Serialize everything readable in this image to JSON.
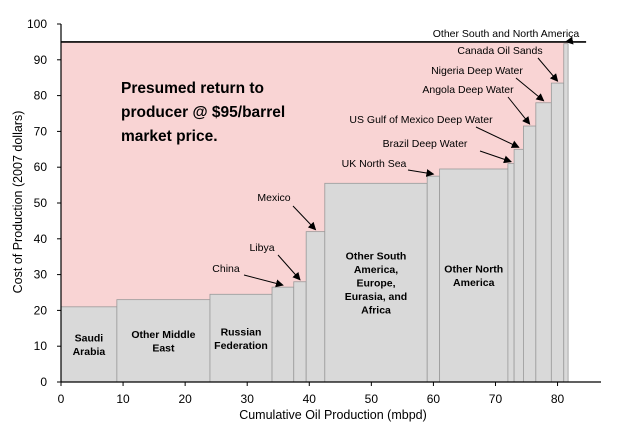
{
  "chart_data": {
    "type": "bar",
    "xlabel": "Cumulative Oil Production (mbpd)",
    "ylabel": "Cost of Production (2007 dollars)",
    "xlim": [
      0,
      87
    ],
    "ylim": [
      0,
      100
    ],
    "x_ticks": [
      "0",
      "10",
      "20",
      "30",
      "40",
      "50",
      "60",
      "70",
      "80"
    ],
    "y_ticks": [
      "0",
      "10",
      "20",
      "30",
      "40",
      "50",
      "60",
      "70",
      "80",
      "90",
      "100"
    ],
    "grid": false,
    "market_price": 95,
    "market_price_note": [
      "Presumed return to",
      "producer @ $95/barrel",
      "market price."
    ],
    "colors": {
      "bar": "#d9d9d9",
      "bar_edge": "#9a9a9a",
      "return_area": "#f9d4d4",
      "price_line": "#000000"
    },
    "bars": [
      {
        "name": "Saudi Arabia",
        "label_lines": [
          "Saudi",
          "Arabia"
        ],
        "x_start": 0,
        "x_end": 9,
        "cost": 21
      },
      {
        "name": "Other Middle East",
        "label_lines": [
          "Other Middle",
          "East"
        ],
        "x_start": 9,
        "x_end": 24,
        "cost": 23
      },
      {
        "name": "Russian Federation",
        "label_lines": [
          "Russian",
          "Federation"
        ],
        "x_start": 24,
        "x_end": 34,
        "cost": 24.5
      },
      {
        "name": "China",
        "annotation": "China",
        "x_start": 34,
        "x_end": 37.5,
        "cost": 26.5
      },
      {
        "name": "Libya",
        "annotation": "Libya",
        "x_start": 37.5,
        "x_end": 39.5,
        "cost": 28
      },
      {
        "name": "Mexico",
        "annotation": "Mexico",
        "x_start": 39.5,
        "x_end": 42.5,
        "cost": 42
      },
      {
        "name": "Other South America, Europe, Eurasia, and Africa",
        "label_lines": [
          "Other South",
          "America,",
          "Europe,",
          "Eurasia, and",
          "Africa"
        ],
        "x_start": 42.5,
        "x_end": 59,
        "cost": 55.5
      },
      {
        "name": "UK North Sea",
        "annotation": "UK North Sea",
        "x_start": 59,
        "x_end": 61,
        "cost": 57.5
      },
      {
        "name": "Other North America",
        "label_lines": [
          "Other North",
          "America"
        ],
        "x_start": 61,
        "x_end": 72,
        "cost": 59.5
      },
      {
        "name": "Brazil Deep Water",
        "annotation": "Brazil Deep Water",
        "x_start": 72,
        "x_end": 73,
        "cost": 61
      },
      {
        "name": "US Gulf of Mexico Deep Water",
        "annotation": "US Gulf of Mexico Deep Water",
        "x_start": 73,
        "x_end": 74.5,
        "cost": 65
      },
      {
        "name": "Angola Deep Water",
        "annotation": "Angola Deep Water",
        "x_start": 74.5,
        "x_end": 76.5,
        "cost": 71.5
      },
      {
        "name": "Nigeria Deep Water",
        "annotation": "Nigeria Deep Water",
        "x_start": 76.5,
        "x_end": 79,
        "cost": 78
      },
      {
        "name": "Canada Oil Sands",
        "annotation": "Canada Oil Sands",
        "x_start": 79,
        "x_end": 81,
        "cost": 83.5
      },
      {
        "name": "Other South and North America",
        "annotation": "Other South and North America",
        "x_start": 81,
        "x_end": 81.7,
        "cost": 94.5
      }
    ]
  }
}
